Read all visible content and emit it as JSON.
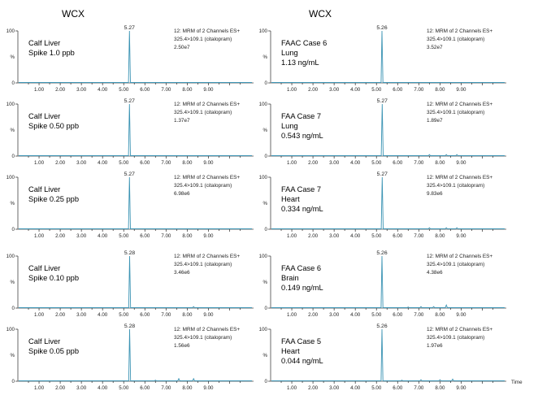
{
  "columns": [
    "WCX",
    "WCX"
  ],
  "time_label": "Time",
  "chart_data": [
    {
      "type": "line",
      "column": 0,
      "row": 0,
      "sample_lines": [
        "Calf Liver",
        "Spike 1.0 ppb"
      ],
      "channel_lines": [
        "12: MRM of 2 Channels ES+",
        "325.4>109.1 (citalopram)",
        "2.50e7"
      ],
      "peak_label": "5.27",
      "peak_rt": 5.27,
      "xlim": [
        0,
        10
      ],
      "ylim": [
        0,
        100
      ],
      "x_ticks": [
        "1.00",
        "2.00",
        "3.00",
        "4.00",
        "5.00",
        "6.00",
        "7.00",
        "8.00",
        "9.00"
      ],
      "y_ticks": [
        "0",
        "100"
      ],
      "ylabel": "%",
      "noise": []
    },
    {
      "type": "line",
      "column": 0,
      "row": 1,
      "sample_lines": [
        "Calf Liver",
        "Spike 0.50 ppb"
      ],
      "channel_lines": [
        "12: MRM of 2 Channels ES+",
        "325.4>109.1 (citalopram)",
        "1.37e7"
      ],
      "peak_label": "5.27",
      "peak_rt": 5.27,
      "xlim": [
        0,
        10
      ],
      "ylim": [
        0,
        100
      ],
      "x_ticks": [
        "1.00",
        "2.00",
        "3.00",
        "4.00",
        "5.00",
        "6.00",
        "7.00",
        "8.00",
        "9.00"
      ],
      "y_ticks": [
        "0",
        "100"
      ],
      "ylabel": "%",
      "noise": []
    },
    {
      "type": "line",
      "column": 0,
      "row": 2,
      "sample_lines": [
        "Calf Liver",
        "Spike 0.25 ppb"
      ],
      "channel_lines": [
        "12: MRM of 2 Channels ES+",
        "325.4>109.1 (citalopram)",
        "6.98e6"
      ],
      "peak_label": "5.27",
      "peak_rt": 5.27,
      "xlim": [
        0,
        10
      ],
      "ylim": [
        0,
        100
      ],
      "x_ticks": [
        "1.00",
        "2.00",
        "3.00",
        "4.00",
        "5.00",
        "6.00",
        "7.00",
        "8.00",
        "9.00"
      ],
      "y_ticks": [
        "0",
        "100"
      ],
      "ylabel": "%",
      "noise": []
    },
    {
      "type": "line",
      "column": 0,
      "row": 3,
      "sample_lines": [
        "Calf Liver",
        "Spike 0.10 ppb"
      ],
      "channel_lines": [
        "12: MRM of 2 Channels ES+",
        "325.4>109.1 (citalopram)",
        "3.46e6"
      ],
      "peak_label": "5.28",
      "peak_rt": 5.28,
      "xlim": [
        0,
        10
      ],
      "ylim": [
        0,
        100
      ],
      "x_ticks": [
        "1.00",
        "2.00",
        "3.00",
        "4.00",
        "5.00",
        "6.00",
        "7.00",
        "8.00",
        "9.00"
      ],
      "y_ticks": [
        "0",
        "100"
      ],
      "ylabel": "%",
      "noise": [
        {
          "x": 8.3,
          "h": 3
        }
      ]
    },
    {
      "type": "line",
      "column": 0,
      "row": 4,
      "sample_lines": [
        "Calf Liver",
        "Spike 0.05 ppb"
      ],
      "channel_lines": [
        "12: MRM of 2 Channels ES+",
        "325.4>109.1 (citalopram)",
        "1.56e6"
      ],
      "peak_label": "5.28",
      "peak_rt": 5.28,
      "xlim": [
        0,
        10
      ],
      "ylim": [
        0,
        100
      ],
      "x_ticks": [
        "1.00",
        "2.00",
        "3.00",
        "4.00",
        "5.00",
        "6.00",
        "7.00",
        "8.00",
        "9.00"
      ],
      "y_ticks": [
        "0",
        "100"
      ],
      "ylabel": "%",
      "noise": [
        {
          "x": 6.5,
          "h": 2
        },
        {
          "x": 7.6,
          "h": 5
        },
        {
          "x": 8.3,
          "h": 5
        }
      ]
    },
    {
      "type": "line",
      "column": 1,
      "row": 0,
      "sample_lines": [
        "FAAC Case 6",
        "Lung",
        "1.13 ng/mL"
      ],
      "channel_lines": [
        "12: MRM of 2 Channels ES+",
        "325.4>109.1 (citalopram)",
        "3.52e7"
      ],
      "peak_label": "5.26",
      "peak_rt": 5.26,
      "xlim": [
        0,
        10
      ],
      "ylim": [
        0,
        100
      ],
      "x_ticks": [
        "1.00",
        "2.00",
        "3.00",
        "4.00",
        "5.00",
        "6.00",
        "7.00",
        "8.00",
        "9.00"
      ],
      "y_ticks": [
        "0",
        "100"
      ],
      "ylabel": "%",
      "noise": []
    },
    {
      "type": "line",
      "column": 1,
      "row": 1,
      "sample_lines": [
        "FAA Case 7",
        "Lung",
        "0.543 ng/mL"
      ],
      "channel_lines": [
        "12: MRM of 2 Channels ES+",
        "325.4>109.1 (citalopram)",
        "1.89e7"
      ],
      "peak_label": "5.27",
      "peak_rt": 5.27,
      "xlim": [
        0,
        10
      ],
      "ylim": [
        0,
        100
      ],
      "x_ticks": [
        "1.00",
        "2.00",
        "3.00",
        "4.00",
        "5.00",
        "6.00",
        "7.00",
        "8.00",
        "9.00"
      ],
      "y_ticks": [
        "0",
        "100"
      ],
      "ylabel": "%",
      "noise": [
        {
          "x": 7.5,
          "h": 3
        },
        {
          "x": 8.3,
          "h": 3
        },
        {
          "x": 8.8,
          "h": 3
        }
      ]
    },
    {
      "type": "line",
      "column": 1,
      "row": 2,
      "sample_lines": [
        "FAA Case 7",
        "Heart",
        "0.334 ng/mL"
      ],
      "channel_lines": [
        "12: MRM of 2 Channels ES+",
        "325.4>109.1 (citalopram)",
        "9.83e6"
      ],
      "peak_label": "5.27",
      "peak_rt": 5.27,
      "xlim": [
        0,
        10
      ],
      "ylim": [
        0,
        100
      ],
      "x_ticks": [
        "1.00",
        "2.00",
        "3.00",
        "4.00",
        "5.00",
        "6.00",
        "7.00",
        "8.00",
        "9.00"
      ],
      "y_ticks": [
        "0",
        "100"
      ],
      "ylabel": "%",
      "noise": [
        {
          "x": 7.5,
          "h": 3
        },
        {
          "x": 8.3,
          "h": 3
        },
        {
          "x": 8.8,
          "h": 3
        }
      ]
    },
    {
      "type": "line",
      "column": 1,
      "row": 3,
      "sample_lines": [
        "FAA Case 6",
        "Brain",
        "0.149 ng/mL"
      ],
      "channel_lines": [
        "12: MRM of 2 Channels ES+",
        "325.4>109.1 (citalopram)",
        "4.38e6"
      ],
      "peak_label": "5.26",
      "peak_rt": 5.26,
      "xlim": [
        0,
        10
      ],
      "ylim": [
        0,
        100
      ],
      "x_ticks": [
        "1.00",
        "2.00",
        "3.00",
        "4.00",
        "5.00",
        "6.00",
        "7.00",
        "8.00",
        "9.00"
      ],
      "y_ticks": [
        "0",
        "100"
      ],
      "ylabel": "%",
      "noise": [
        {
          "x": 6.5,
          "h": 2
        },
        {
          "x": 7.1,
          "h": 3
        },
        {
          "x": 7.7,
          "h": 3
        },
        {
          "x": 8.3,
          "h": 6
        }
      ]
    },
    {
      "type": "line",
      "column": 1,
      "row": 4,
      "sample_lines": [
        "FAA Case 5",
        "Heart",
        "0.044 ng/mL"
      ],
      "channel_lines": [
        "12: MRM of 2 Channels ES+",
        "325.4>109.1 (citalopram)",
        "1.97e6"
      ],
      "peak_label": "5.26",
      "peak_rt": 5.26,
      "xlim": [
        0,
        10
      ],
      "ylim": [
        0,
        100
      ],
      "x_ticks": [
        "1.00",
        "2.00",
        "3.00",
        "4.00",
        "5.00",
        "6.00",
        "7.00",
        "8.00",
        "9.00"
      ],
      "y_ticks": [
        "0",
        "100"
      ],
      "ylabel": "%",
      "noise": [
        {
          "x": 6.2,
          "h": 2
        },
        {
          "x": 7.1,
          "h": 3
        },
        {
          "x": 8.0,
          "h": 3
        },
        {
          "x": 8.6,
          "h": 4
        }
      ]
    }
  ]
}
